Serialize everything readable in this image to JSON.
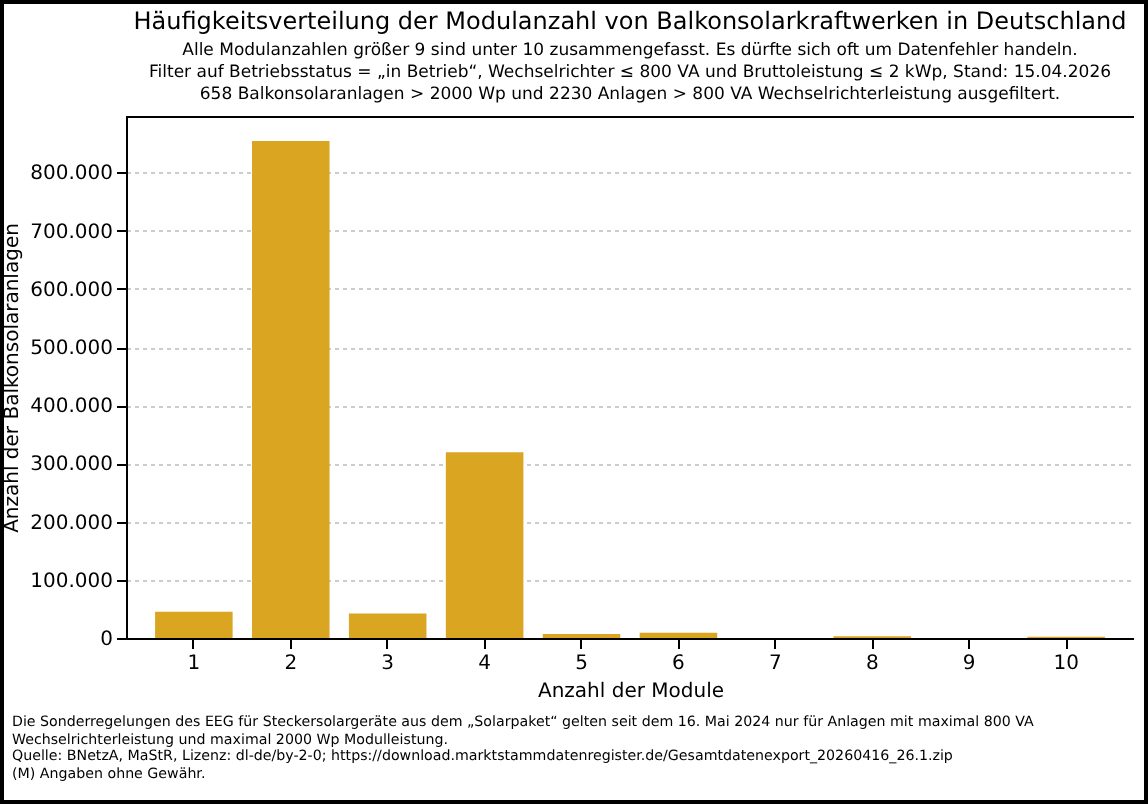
{
  "chart_data": {
    "type": "bar",
    "title": "Häufigkeitsverteilung der Modulanzahl von Balkonsolarkraftwerken in Deutschland",
    "subtitle": "Alle Modulanzahlen größer 9 sind unter 10 zusammengefasst. Es dürfte sich oft um Datenfehler handeln.\nFilter auf Betriebsstatus = „in Betrieb“, Wechselrichter ≤ 800 VA und Bruttoleistung ≤ 2 kWp, Stand: 15.04.2026\n658 Balkonsolaranlagen > 2000 Wp und 2230 Anlagen > 800 VA Wechselrichterleistung ausgefiltert.",
    "xlabel": "Anzahl der Module",
    "ylabel": "Anzahl der Balkonsolaranlagen",
    "categories": [
      "1",
      "2",
      "3",
      "4",
      "5",
      "6",
      "7",
      "8",
      "9",
      "10"
    ],
    "values": [
      45000,
      854000,
      42000,
      319000,
      7000,
      9000,
      0,
      3000,
      0,
      2000
    ],
    "color": "#daa520",
    "ylim": [
      0,
      897000
    ],
    "yticks": [
      0,
      {
        "value": 100000,
        "label": "100.000"
      },
      {
        "value": 200000,
        "label": "200.000"
      },
      {
        "value": 300000,
        "label": "300.000"
      },
      {
        "value": 400000,
        "label": "400.000"
      },
      {
        "value": 500000,
        "label": "500.000"
      },
      {
        "value": 600000,
        "label": "600.000"
      },
      {
        "value": 700000,
        "label": "700.000"
      },
      {
        "value": 800000,
        "label": "800.000"
      }
    ],
    "grid": "y",
    "annotations": [
      "Die Sonderregelungen des EEG für Steckersolargeräte aus dem „Solarpaket“ gelten seit dem 16. Mai 2024 nur für Anlagen mit maximal 800 VA Wechselrichterleistung und maximal 2000 Wp Modulleistung.",
      "Quelle: BNetzA, MaStR, Lizenz: dl-de/by-2-0; https://download.marktstammdatenregister.de/Gesamtdatenexport_20260416_26.1.zip",
      "(M) Angaben ohne Gewähr."
    ]
  }
}
